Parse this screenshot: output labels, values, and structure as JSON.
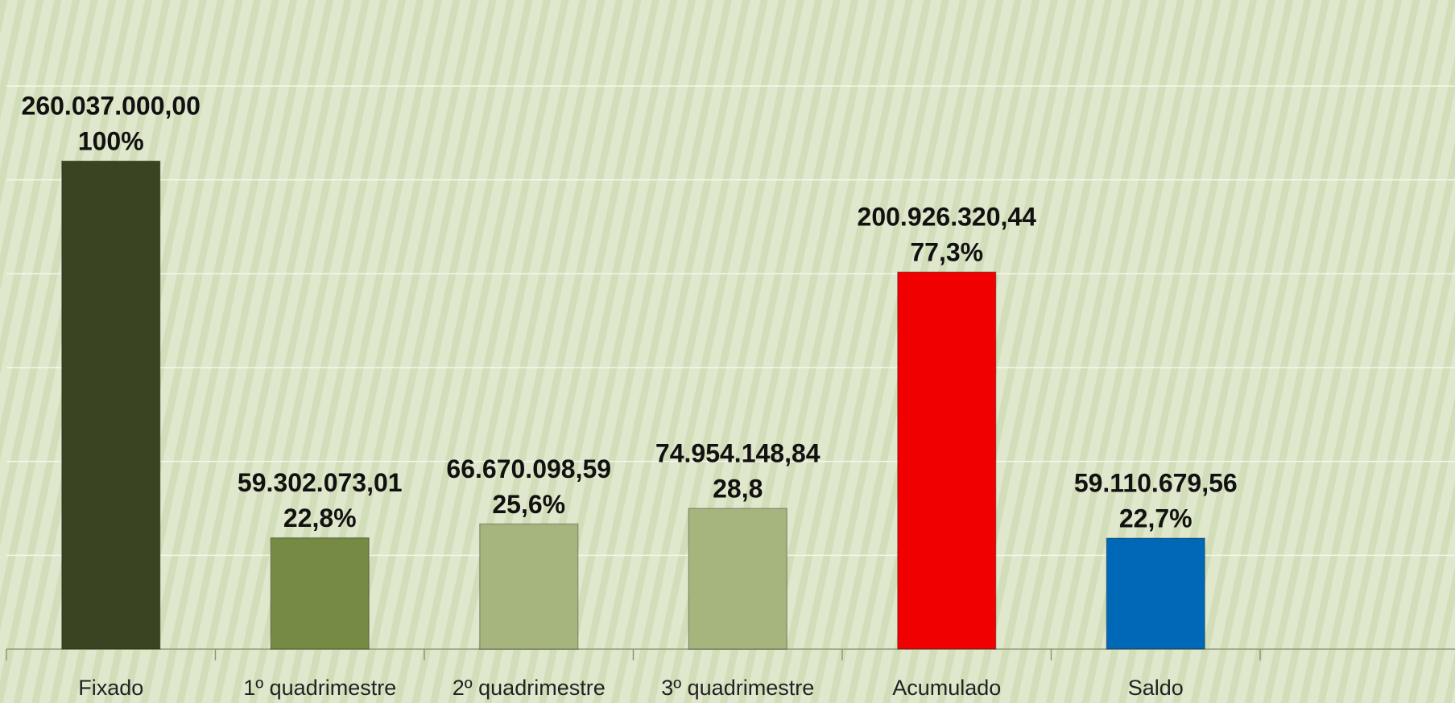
{
  "chart_data": {
    "type": "bar",
    "categories": [
      "Fixado",
      "1º quadrimestre",
      "2º quadrimestre",
      "3º quadrimestre",
      "Acumulado",
      "Saldo"
    ],
    "values": [
      260037000.0,
      59302073.01,
      66670098.59,
      74954148.84,
      200926320.44,
      59110679.56
    ],
    "value_labels": [
      "260.037.000,00",
      "59.302.073,01",
      "66.670.098,59",
      "74.954.148,84",
      "200.926.320,44",
      "59.110.679,56"
    ],
    "percent_labels": [
      "100%",
      "22,8%",
      "25,6%",
      "28,8",
      "77,3%",
      "22,7%"
    ],
    "colors": [
      "#3a4423",
      "#768a44",
      "#a5b57d",
      "#a5b57d",
      "#f00000",
      "#0069b7"
    ],
    "ylim": [
      0,
      300000000
    ],
    "yticks": [
      0,
      50000000,
      100000000,
      150000000,
      200000000,
      250000000,
      300000000
    ],
    "grid": true
  }
}
